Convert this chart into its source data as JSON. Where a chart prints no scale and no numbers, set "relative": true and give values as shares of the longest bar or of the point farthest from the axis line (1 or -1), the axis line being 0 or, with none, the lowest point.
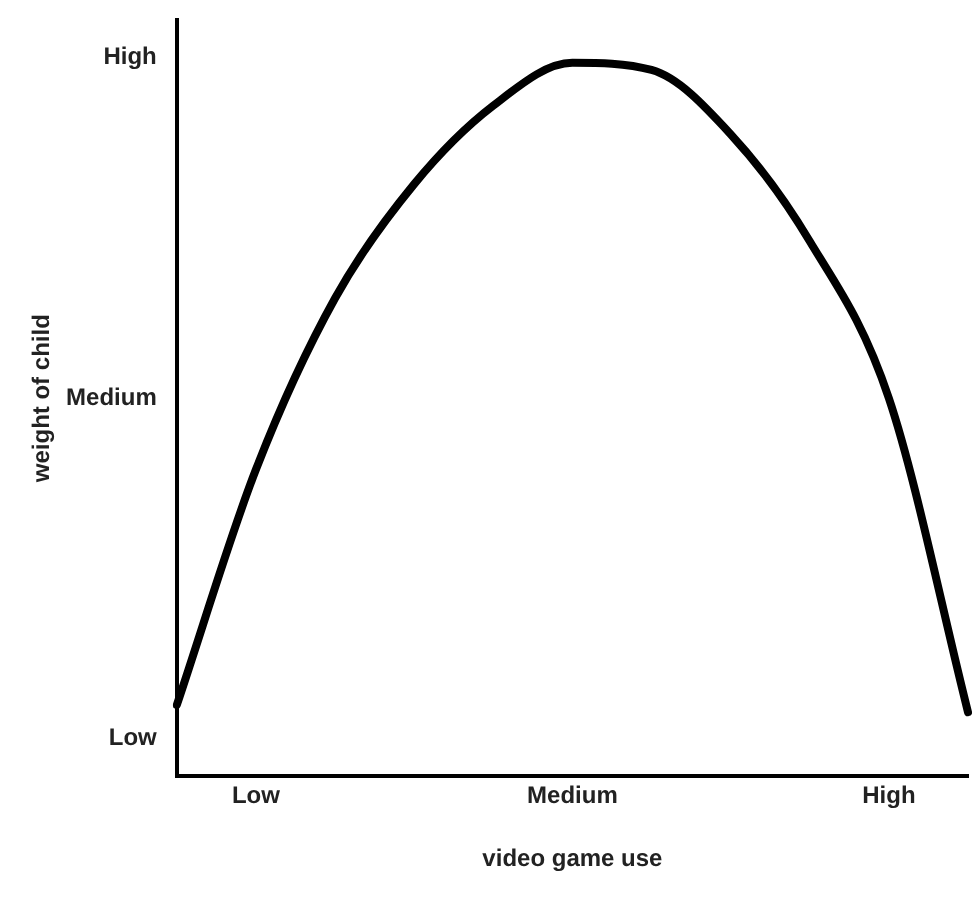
{
  "chart_data": {
    "type": "line",
    "xlabel": "video game use",
    "ylabel": "weight of child",
    "relative": true,
    "categories": [
      null,
      "Low",
      null,
      null,
      null,
      "Medium",
      null,
      null,
      null,
      "High",
      null
    ],
    "annotations": [
      "Low",
      "Medium",
      "High"
    ],
    "grid": false,
    "legend": false,
    "marker": "none",
    "line_style": "solid",
    "series": [
      {
        "color": "#000000",
        "values": [
          0.1,
          0.43,
          0.67,
          0.83,
          0.94,
          1,
          0.99,
          0.9,
          0.75,
          0.53,
          0.09
        ]
      }
    ]
  }
}
